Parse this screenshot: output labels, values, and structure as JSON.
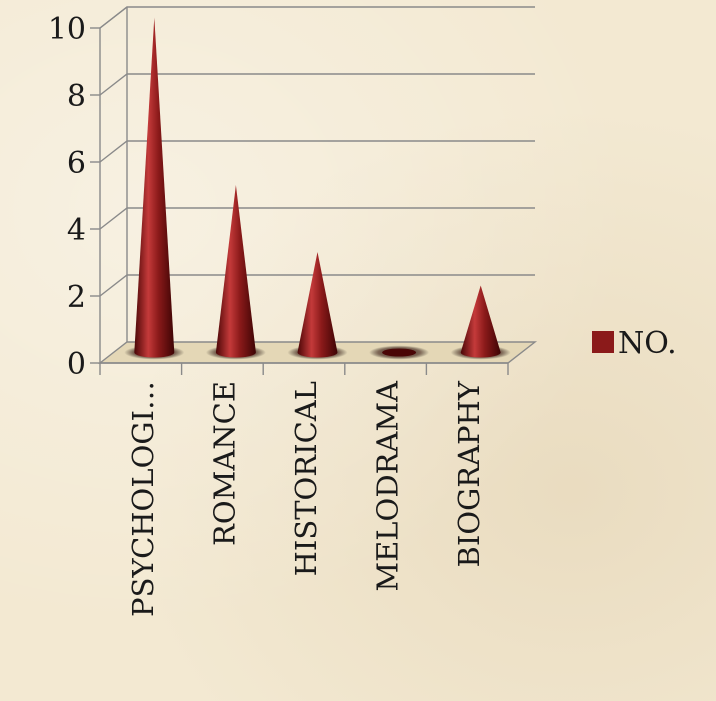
{
  "chart_data": {
    "type": "bar",
    "bar_shape": "cone",
    "categories": [
      "PSYCHOLOGI…",
      "ROMANCE",
      "HISTORICAL",
      "MELODRAMA",
      "BIOGRAPHY"
    ],
    "series": [
      {
        "name": "NO.",
        "values": [
          10,
          5,
          3,
          0,
          2
        ]
      }
    ],
    "title": "",
    "xlabel": "",
    "ylabel": "",
    "ylim": [
      0,
      10
    ],
    "yticks": [
      "0",
      "2",
      "4",
      "6",
      "8",
      "10"
    ],
    "grid": true,
    "legend": "right",
    "colors": {
      "series": "#8b1a1a",
      "series_dark": "#4a0606",
      "series_light": "#c43a3a",
      "grid": "#8a8a8a",
      "floor": "#e4d7b6"
    }
  }
}
